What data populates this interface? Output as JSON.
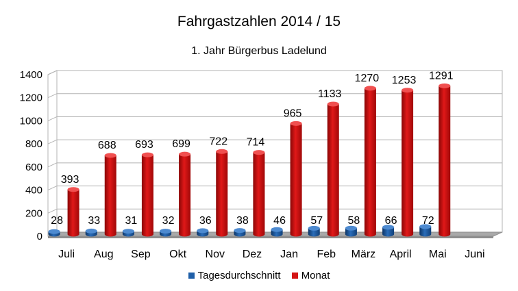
{
  "chart_data": {
    "type": "bar",
    "title": "Fahrgastzahlen 2014 / 15",
    "subtitle": "1. Jahr Bürgerbus Ladelund",
    "categories": [
      "Juli",
      "Aug",
      "Sep",
      "Okt",
      "Nov",
      "Dez",
      "Jan",
      "Feb",
      "März",
      "April",
      "Mai",
      "Juni"
    ],
    "series": [
      {
        "name": "Tagesdurchschnitt",
        "color": "#1f5fa8",
        "values": [
          28,
          33,
          31,
          32,
          36,
          38,
          46,
          57,
          58,
          66,
          72,
          null
        ]
      },
      {
        "name": "Monat",
        "color": "#d41414",
        "values": [
          393,
          688,
          693,
          699,
          722,
          714,
          965,
          1133,
          1270,
          1253,
          1291,
          null
        ]
      }
    ],
    "y_ticks": [
      "0",
      "200",
      "400",
      "600",
      "800",
      "1000",
      "1200",
      "1400"
    ],
    "ylim": [
      0,
      1400
    ],
    "grid": true,
    "style": "3d",
    "legend_position": "bottom"
  }
}
